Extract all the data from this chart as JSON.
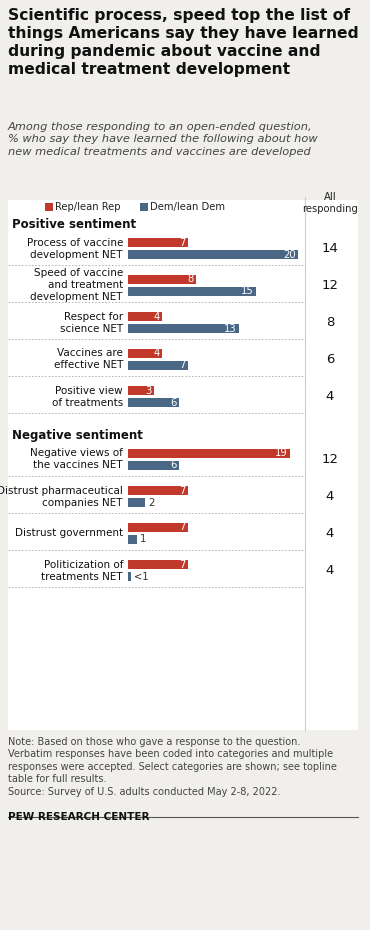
{
  "title": "Scientific process, speed top the list of\nthings Americans say they have learned\nduring pandemic about vaccine and\nmedical treatment development",
  "subtitle": "Among those responding to an open-ended question,\n% who say they have learned the following about how\nnew medical treatments and vaccines are developed",
  "legend_rep": "Rep/lean Rep",
  "legend_dem": "Dem/lean Dem",
  "color_rep": "#C0392B",
  "color_dem": "#4A6885",
  "color_bg": "#F0EFEB",
  "positive_label": "Positive sentiment",
  "negative_label": "Negative sentiment",
  "categories": [
    "Process of vaccine\ndevelopment NET",
    "Speed of vaccine\nand treatment\ndevelopment NET",
    "Respect for\nscience NET",
    "Vaccines are\neffective NET",
    "Positive view\nof treatments",
    "Negative views of\nthe vaccines NET",
    "Distrust pharmaceutical\ncompanies NET",
    "Distrust government",
    "Politicization of\ntreatments NET"
  ],
  "rep_values": [
    7,
    8,
    4,
    4,
    3,
    19,
    7,
    7,
    7
  ],
  "dem_values": [
    20,
    15,
    13,
    7,
    6,
    6,
    2,
    1,
    0.4
  ],
  "all_values": [
    14,
    12,
    8,
    6,
    4,
    12,
    4,
    4,
    4
  ],
  "dem_labels": [
    "20",
    "15",
    "13",
    "7",
    "6",
    "6",
    "2",
    "1",
    "<1"
  ],
  "note": "Note: Based on those who gave a response to the question.\nVerbatim responses have been coded into categories and multiple\nresponses were accepted. Select categories are shown; see topline\ntable for full results.\nSource: Survey of U.S. adults conducted May 2-8, 2022.",
  "footer": "PEW RESEARCH CENTER"
}
